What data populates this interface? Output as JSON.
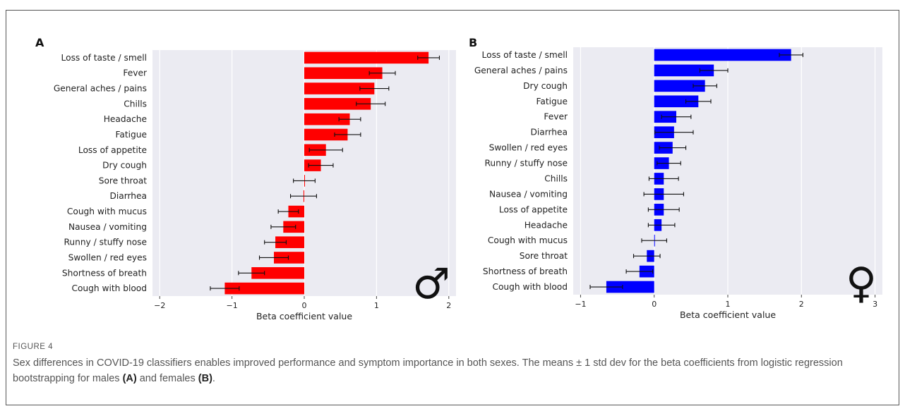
{
  "colors": {
    "male": "#ff0000",
    "female": "#0000ff",
    "plot_bg": "#ebebf2",
    "grid": "#ffffff"
  },
  "chart_data": [
    {
      "type": "bar",
      "orientation": "horizontal",
      "panel_label": "A",
      "symbol": "♂",
      "xlabel": "Beta coefficient value",
      "xlim": [
        -2.1,
        2.1
      ],
      "xticks": [
        -2,
        -1,
        0,
        1,
        2
      ],
      "grid": true,
      "categories": [
        "Loss of taste / smell",
        "Fever",
        "General aches / pains",
        "Chills",
        "Headache",
        "Fatigue",
        "Loss of appetite",
        "Dry cough",
        "Sore throat",
        "Diarrhea",
        "Cough with mucus",
        "Nausea / vomiting",
        "Runny / stuffy nose",
        "Swollen / red eyes",
        "Shortness of breath",
        "Cough with blood"
      ],
      "values": [
        1.72,
        1.08,
        0.97,
        0.92,
        0.63,
        0.6,
        0.3,
        0.23,
        0.0,
        -0.01,
        -0.22,
        -0.29,
        -0.4,
        -0.42,
        -0.73,
        -1.1
      ],
      "errors": [
        0.15,
        0.18,
        0.2,
        0.2,
        0.15,
        0.18,
        0.23,
        0.17,
        0.15,
        0.18,
        0.14,
        0.17,
        0.15,
        0.2,
        0.18,
        0.2
      ]
    },
    {
      "type": "bar",
      "orientation": "horizontal",
      "panel_label": "B",
      "symbol": "♀",
      "xlabel": "Beta coefficient value",
      "xlim": [
        -1.1,
        3.1
      ],
      "xticks": [
        -1,
        0,
        1,
        2,
        3
      ],
      "grid": true,
      "categories": [
        "Loss of taste / smell",
        "General aches / pains",
        "Dry cough",
        "Fatigue",
        "Fever",
        "Diarrhea",
        "Swollen / red eyes",
        "Runny / stuffy nose",
        "Chills",
        "Nausea / vomiting",
        "Loss of appetite",
        "Headache",
        "Cough with mucus",
        "Sore throat",
        "Shortness of breath",
        "Cough with blood"
      ],
      "values": [
        1.86,
        0.81,
        0.69,
        0.6,
        0.3,
        0.27,
        0.25,
        0.2,
        0.13,
        0.13,
        0.13,
        0.1,
        0.0,
        -0.1,
        -0.2,
        -0.65
      ],
      "errors": [
        0.16,
        0.19,
        0.16,
        0.17,
        0.2,
        0.26,
        0.18,
        0.16,
        0.2,
        0.27,
        0.21,
        0.18,
        0.17,
        0.18,
        0.18,
        0.22
      ]
    }
  ],
  "caption": {
    "label": "FIGURE 4",
    "text_1": "Sex differences in COVID-19 classifiers enables improved performance and symptom importance in both sexes. The means ± 1 std dev for the beta coefficients from logistic regression bootstrapping for males ",
    "ref_a": "(A)",
    "text_2": " and females ",
    "ref_b": "(B)",
    "text_3": "."
  }
}
